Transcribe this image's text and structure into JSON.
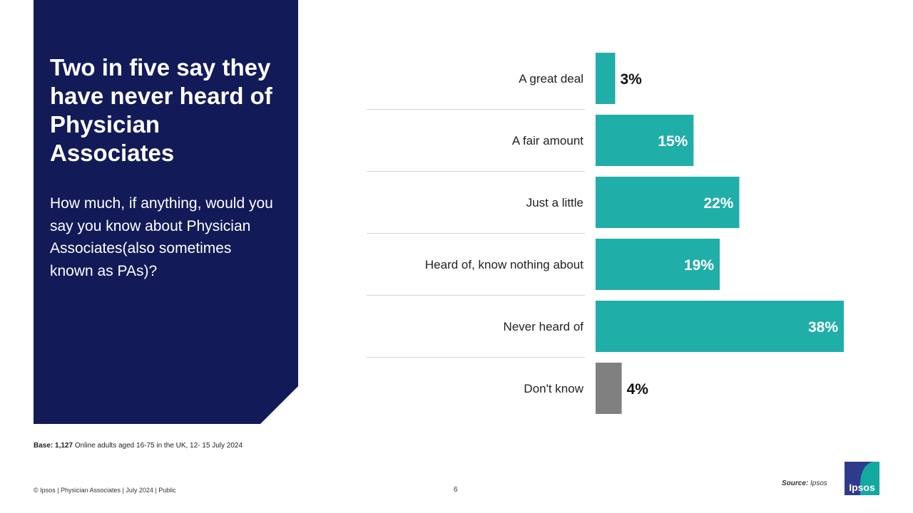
{
  "slide": {
    "headline": "Two in five say they have never heard of Physician Associates",
    "question": "How much, if anything, would you say you know about Physician Associates(also sometimes known as PAs)?"
  },
  "footnote": {
    "base_label": "Base:",
    "base_value": "1,127",
    "base_text": "Online adults aged 16-75 in the UK, 12- 15 July 2024"
  },
  "footer": {
    "left": "© Ipsos | Physician Associates | July 2024 | Public",
    "page": "6",
    "source_label": "Source:",
    "source_value": "Ipsos",
    "logo_text": "Ipsos"
  },
  "colors": {
    "panel": "#121a58",
    "bar_main": "#20aea9",
    "bar_dontknow": "#808080"
  },
  "chart_data": {
    "type": "bar",
    "orientation": "horizontal",
    "categories": [
      "A great deal",
      "A fair amount",
      "Just a little",
      "Heard of, know nothing about",
      "Never heard of",
      "Don't know"
    ],
    "values": [
      3,
      15,
      22,
      19,
      38,
      4
    ],
    "value_labels": [
      "3%",
      "15%",
      "22%",
      "19%",
      "38%",
      "4%"
    ],
    "unit": "%",
    "bar_colors": [
      "#20aea9",
      "#20aea9",
      "#20aea9",
      "#20aea9",
      "#20aea9",
      "#808080"
    ],
    "xlim": [
      0,
      40
    ],
    "grid": false,
    "legend": "none"
  }
}
